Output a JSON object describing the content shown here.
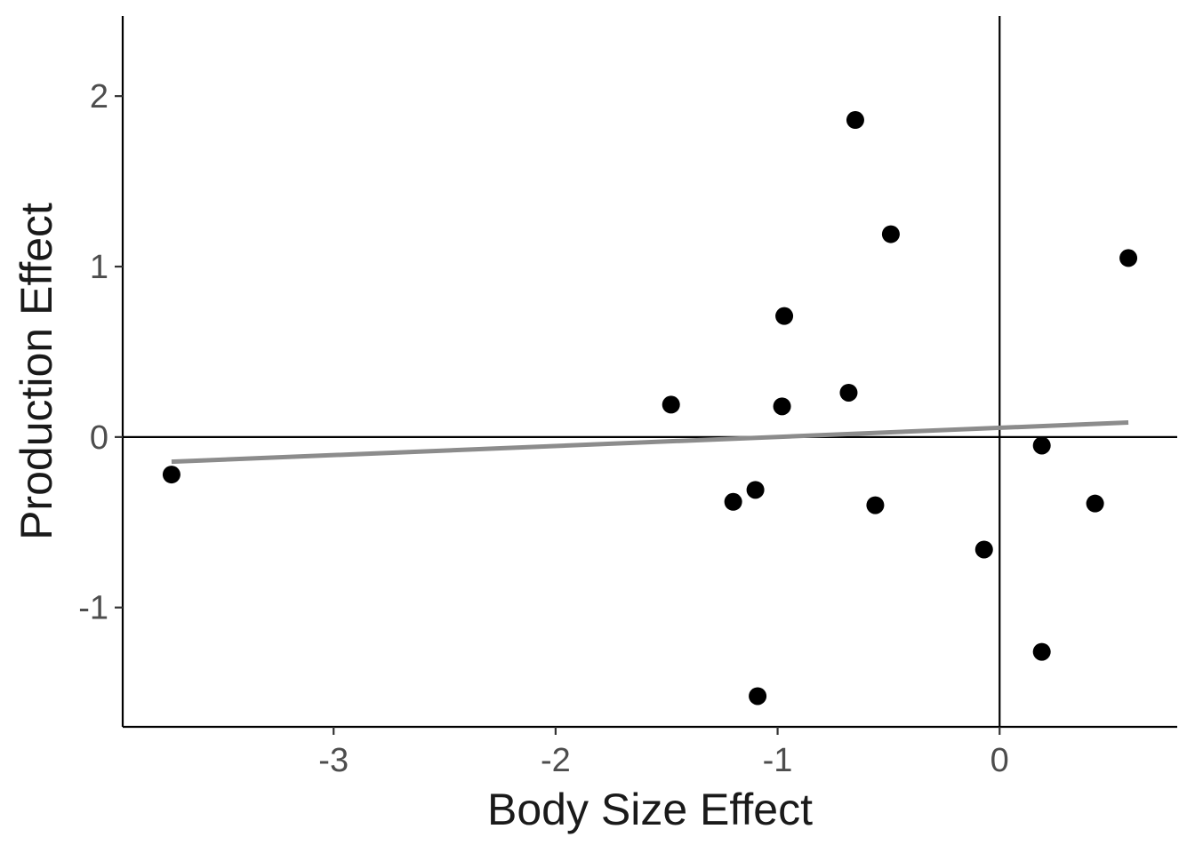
{
  "chart_data": {
    "type": "scatter",
    "title": "",
    "xlabel": "Body Size Effect",
    "ylabel": "Production Effect",
    "xlim": [
      -3.95,
      0.8
    ],
    "ylim": [
      -1.7,
      2.47
    ],
    "x_ticks": [
      -3,
      -2,
      -1,
      0
    ],
    "x_tick_labels": [
      "-3",
      "-2",
      "-1",
      "0"
    ],
    "y_ticks": [
      -1,
      0,
      1,
      2
    ],
    "y_tick_labels": [
      "-1",
      "0",
      "1",
      "2"
    ],
    "grid": false,
    "reference_lines": {
      "x": 0,
      "y": 0
    },
    "series": [
      {
        "points": [
          {
            "x": -3.73,
            "y": -0.22
          },
          {
            "x": -1.48,
            "y": 0.19
          },
          {
            "x": -1.2,
            "y": -0.38
          },
          {
            "x": -1.1,
            "y": -0.31
          },
          {
            "x": -1.09,
            "y": -1.52
          },
          {
            "x": -0.98,
            "y": 0.18
          },
          {
            "x": -0.97,
            "y": 0.71
          },
          {
            "x": -0.68,
            "y": 0.26
          },
          {
            "x": -0.65,
            "y": 1.86
          },
          {
            "x": -0.56,
            "y": -0.4
          },
          {
            "x": -0.49,
            "y": 1.19
          },
          {
            "x": -0.07,
            "y": -0.66
          },
          {
            "x": 0.19,
            "y": -0.05
          },
          {
            "x": 0.19,
            "y": -1.26
          },
          {
            "x": 0.43,
            "y": -0.39
          },
          {
            "x": 0.58,
            "y": 1.05
          }
        ],
        "color": "#000000"
      }
    ],
    "fit_line": {
      "x": [
        -3.73,
        0.58
      ],
      "y": [
        -0.145,
        0.085
      ],
      "color": "#8c8c8c"
    }
  }
}
